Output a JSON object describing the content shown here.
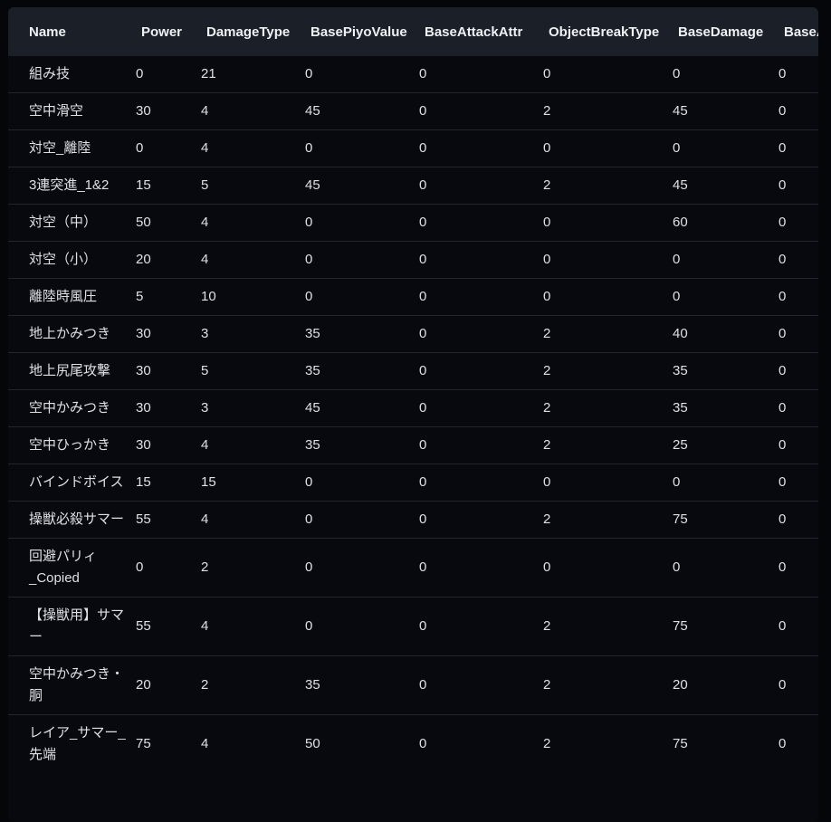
{
  "colors": {
    "page_bg": "#050609",
    "card_bg": "#07090e",
    "header_bg": "#1b1f27",
    "divider": "#21252d",
    "text": "#dde1e6",
    "header_text": "#eef1f4"
  },
  "table": {
    "columns": [
      {
        "key": "name",
        "label": "Name"
      },
      {
        "key": "power",
        "label": "Power"
      },
      {
        "key": "damage_type",
        "label": "DamageType"
      },
      {
        "key": "base_piyo_value",
        "label": "BasePiyoValue"
      },
      {
        "key": "base_attack_attr",
        "label": "BaseAttackAttr"
      },
      {
        "key": "object_break_type",
        "label": "ObjectBreakType"
      },
      {
        "key": "base_damage",
        "label": "BaseDamage"
      },
      {
        "key": "base_a_clipped",
        "label": "BaseA"
      }
    ],
    "rows": [
      {
        "name": "組み技",
        "power": 0,
        "damage_type": 21,
        "base_piyo_value": 0,
        "base_attack_attr": 0,
        "object_break_type": 0,
        "base_damage": 0,
        "base_a_clipped": 0
      },
      {
        "name": "空中滑空",
        "power": 30,
        "damage_type": 4,
        "base_piyo_value": 45,
        "base_attack_attr": 0,
        "object_break_type": 2,
        "base_damage": 45,
        "base_a_clipped": 0
      },
      {
        "name": "対空_離陸",
        "power": 0,
        "damage_type": 4,
        "base_piyo_value": 0,
        "base_attack_attr": 0,
        "object_break_type": 0,
        "base_damage": 0,
        "base_a_clipped": 0
      },
      {
        "name": "3連突進_1&2",
        "power": 15,
        "damage_type": 5,
        "base_piyo_value": 45,
        "base_attack_attr": 0,
        "object_break_type": 2,
        "base_damage": 45,
        "base_a_clipped": 0
      },
      {
        "name": "対空（中）",
        "power": 50,
        "damage_type": 4,
        "base_piyo_value": 0,
        "base_attack_attr": 0,
        "object_break_type": 0,
        "base_damage": 60,
        "base_a_clipped": 0
      },
      {
        "name": "対空（小）",
        "power": 20,
        "damage_type": 4,
        "base_piyo_value": 0,
        "base_attack_attr": 0,
        "object_break_type": 0,
        "base_damage": 0,
        "base_a_clipped": 0
      },
      {
        "name": "離陸時風圧",
        "power": 5,
        "damage_type": 10,
        "base_piyo_value": 0,
        "base_attack_attr": 0,
        "object_break_type": 0,
        "base_damage": 0,
        "base_a_clipped": 0
      },
      {
        "name": "地上かみつき",
        "power": 30,
        "damage_type": 3,
        "base_piyo_value": 35,
        "base_attack_attr": 0,
        "object_break_type": 2,
        "base_damage": 40,
        "base_a_clipped": 0
      },
      {
        "name": "地上尻尾攻撃",
        "power": 30,
        "damage_type": 5,
        "base_piyo_value": 35,
        "base_attack_attr": 0,
        "object_break_type": 2,
        "base_damage": 35,
        "base_a_clipped": 0
      },
      {
        "name": "空中かみつき",
        "power": 30,
        "damage_type": 3,
        "base_piyo_value": 45,
        "base_attack_attr": 0,
        "object_break_type": 2,
        "base_damage": 35,
        "base_a_clipped": 0
      },
      {
        "name": "空中ひっかき",
        "power": 30,
        "damage_type": 4,
        "base_piyo_value": 35,
        "base_attack_attr": 0,
        "object_break_type": 2,
        "base_damage": 25,
        "base_a_clipped": 0
      },
      {
        "name": "バインドボイス",
        "power": 15,
        "damage_type": 15,
        "base_piyo_value": 0,
        "base_attack_attr": 0,
        "object_break_type": 0,
        "base_damage": 0,
        "base_a_clipped": 0
      },
      {
        "name": "操獣必殺サマー",
        "power": 55,
        "damage_type": 4,
        "base_piyo_value": 0,
        "base_attack_attr": 0,
        "object_break_type": 2,
        "base_damage": 75,
        "base_a_clipped": 0
      },
      {
        "name": "回避パリィ_Copied",
        "power": 0,
        "damage_type": 2,
        "base_piyo_value": 0,
        "base_attack_attr": 0,
        "object_break_type": 0,
        "base_damage": 0,
        "base_a_clipped": 0
      },
      {
        "name": "【操獣用】サマー",
        "power": 55,
        "damage_type": 4,
        "base_piyo_value": 0,
        "base_attack_attr": 0,
        "object_break_type": 2,
        "base_damage": 75,
        "base_a_clipped": 0
      },
      {
        "name": "空中かみつき・胴",
        "power": 20,
        "damage_type": 2,
        "base_piyo_value": 35,
        "base_attack_attr": 0,
        "object_break_type": 2,
        "base_damage": 20,
        "base_a_clipped": 0
      },
      {
        "name": "レイア_サマー_先端",
        "power": 75,
        "damage_type": 4,
        "base_piyo_value": 50,
        "base_attack_attr": 0,
        "object_break_type": 2,
        "base_damage": 75,
        "base_a_clipped": 0
      }
    ]
  }
}
